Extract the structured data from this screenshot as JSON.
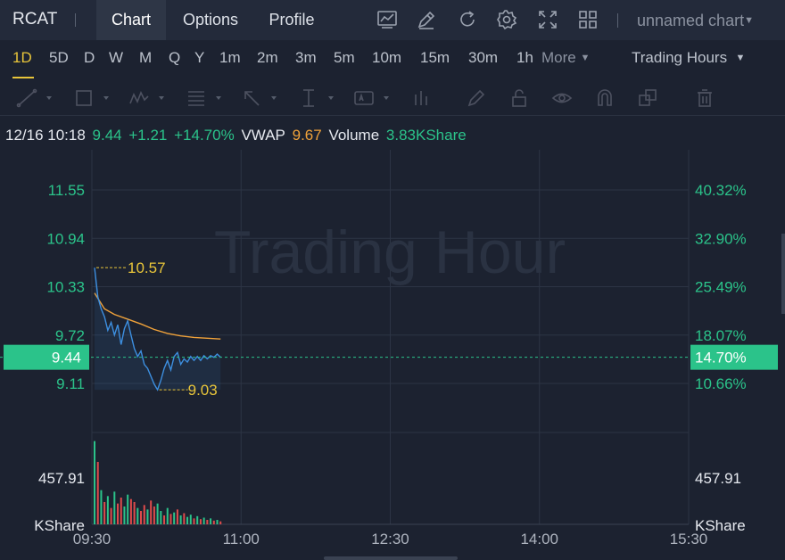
{
  "header": {
    "ticker": "RCAT",
    "tabs": [
      {
        "label": "Chart",
        "active": true
      },
      {
        "label": "Options",
        "active": false
      },
      {
        "label": "Profile",
        "active": false
      }
    ],
    "icons": [
      "indicators-icon",
      "draw-icon",
      "refresh-icon",
      "settings-icon",
      "fullscreen-icon",
      "layout-icon"
    ],
    "chart_name": "unnamed chart"
  },
  "timeframes": {
    "items": [
      "1D",
      "5D",
      "D",
      "W",
      "M",
      "Q",
      "Y",
      "1m",
      "2m",
      "3m",
      "5m",
      "10m",
      "15m",
      "30m",
      "1h"
    ],
    "active": "1D",
    "more_label": "More",
    "session_label": "Trading Hours"
  },
  "drawing_tools": [
    "trendline-icon",
    "rectangle-icon",
    "pattern-icon",
    "fibonacci-icon",
    "arrow-icon",
    "measure-icon",
    "text-icon",
    "bar-pattern-icon",
    "brush-icon",
    "lock-icon",
    "eye-icon",
    "magnet-icon",
    "layers-icon",
    "trash-icon"
  ],
  "quote": {
    "datetime": "12/16 10:18",
    "price": "9.44",
    "change": "+1.21",
    "change_pct": "+14.70%",
    "vwap_label": "VWAP",
    "vwap": "9.67",
    "volume_label": "Volume",
    "volume": "3.83KShare"
  },
  "colors": {
    "up": "#2bc38a",
    "down": "#e04b4b",
    "price_line": "#3d8fe0",
    "vwap_line": "#f0a23a",
    "accent": "#e8c53a"
  },
  "chart_data": {
    "type": "line",
    "watermark": "Trading Hour",
    "x_ticks": [
      "09:30",
      "11:00",
      "12:30",
      "14:00",
      "15:30"
    ],
    "y_ticks_price": [
      11.55,
      10.94,
      10.33,
      9.72,
      9.11
    ],
    "y_ticks_pct": [
      "40.32%",
      "32.90%",
      "25.49%",
      "18.07%",
      "10.66%"
    ],
    "current_price": "9.44",
    "current_pct": "14.70%",
    "high_label": "10.57",
    "low_label": "9.03",
    "volume_axis_value": "457.91",
    "volume_unit": "KShare",
    "price_series": [
      {
        "t": 0,
        "v": 10.57
      },
      {
        "t": 1,
        "v": 10.2
      },
      {
        "t": 2,
        "v": 10.05
      },
      {
        "t": 3,
        "v": 9.95
      },
      {
        "t": 4,
        "v": 9.78
      },
      {
        "t": 5,
        "v": 9.88
      },
      {
        "t": 6,
        "v": 9.72
      },
      {
        "t": 7,
        "v": 9.85
      },
      {
        "t": 8,
        "v": 9.6
      },
      {
        "t": 9,
        "v": 9.8
      },
      {
        "t": 10,
        "v": 9.9
      },
      {
        "t": 11,
        "v": 9.72
      },
      {
        "t": 12,
        "v": 9.55
      },
      {
        "t": 13,
        "v": 9.45
      },
      {
        "t": 14,
        "v": 9.52
      },
      {
        "t": 15,
        "v": 9.35
      },
      {
        "t": 16,
        "v": 9.3
      },
      {
        "t": 17,
        "v": 9.2
      },
      {
        "t": 18,
        "v": 9.1
      },
      {
        "t": 19,
        "v": 9.03
      },
      {
        "t": 20,
        "v": 9.15
      },
      {
        "t": 21,
        "v": 9.3
      },
      {
        "t": 22,
        "v": 9.4
      },
      {
        "t": 23,
        "v": 9.28
      },
      {
        "t": 24,
        "v": 9.45
      },
      {
        "t": 25,
        "v": 9.5
      },
      {
        "t": 26,
        "v": 9.35
      },
      {
        "t": 27,
        "v": 9.42
      },
      {
        "t": 28,
        "v": 9.38
      },
      {
        "t": 29,
        "v": 9.45
      },
      {
        "t": 30,
        "v": 9.4
      },
      {
        "t": 31,
        "v": 9.45
      },
      {
        "t": 32,
        "v": 9.4
      },
      {
        "t": 33,
        "v": 9.46
      },
      {
        "t": 34,
        "v": 9.42
      },
      {
        "t": 35,
        "v": 9.46
      },
      {
        "t": 36,
        "v": 9.44
      },
      {
        "t": 37,
        "v": 9.48
      },
      {
        "t": 38,
        "v": 9.44
      }
    ],
    "vwap_series": [
      {
        "t": 0,
        "v": 10.25
      },
      {
        "t": 3,
        "v": 10.05
      },
      {
        "t": 6,
        "v": 9.98
      },
      {
        "t": 10,
        "v": 9.92
      },
      {
        "t": 14,
        "v": 9.86
      },
      {
        "t": 18,
        "v": 9.79
      },
      {
        "t": 22,
        "v": 9.74
      },
      {
        "t": 26,
        "v": 9.71
      },
      {
        "t": 30,
        "v": 9.69
      },
      {
        "t": 34,
        "v": 9.68
      },
      {
        "t": 38,
        "v": 9.67
      }
    ],
    "volume_series": [
      {
        "t": 0,
        "v": 560,
        "up": true
      },
      {
        "t": 1,
        "v": 420,
        "up": false
      },
      {
        "t": 2,
        "v": 230,
        "up": true
      },
      {
        "t": 3,
        "v": 150,
        "up": false
      },
      {
        "t": 4,
        "v": 190,
        "up": true
      },
      {
        "t": 5,
        "v": 110,
        "up": false
      },
      {
        "t": 6,
        "v": 220,
        "up": true
      },
      {
        "t": 7,
        "v": 140,
        "up": false
      },
      {
        "t": 8,
        "v": 180,
        "up": false
      },
      {
        "t": 9,
        "v": 120,
        "up": true
      },
      {
        "t": 10,
        "v": 200,
        "up": true
      },
      {
        "t": 11,
        "v": 170,
        "up": false
      },
      {
        "t": 12,
        "v": 150,
        "up": false
      },
      {
        "t": 13,
        "v": 110,
        "up": true
      },
      {
        "t": 14,
        "v": 90,
        "up": false
      },
      {
        "t": 15,
        "v": 130,
        "up": false
      },
      {
        "t": 16,
        "v": 100,
        "up": true
      },
      {
        "t": 17,
        "v": 160,
        "up": false
      },
      {
        "t": 18,
        "v": 120,
        "up": false
      },
      {
        "t": 19,
        "v": 140,
        "up": true
      },
      {
        "t": 20,
        "v": 90,
        "up": true
      },
      {
        "t": 21,
        "v": 60,
        "up": false
      },
      {
        "t": 22,
        "v": 110,
        "up": true
      },
      {
        "t": 23,
        "v": 70,
        "up": false
      },
      {
        "t": 24,
        "v": 80,
        "up": true
      },
      {
        "t": 25,
        "v": 100,
        "up": false
      },
      {
        "t": 26,
        "v": 60,
        "up": true
      },
      {
        "t": 27,
        "v": 75,
        "up": false
      },
      {
        "t": 28,
        "v": 50,
        "up": true
      },
      {
        "t": 29,
        "v": 65,
        "up": true
      },
      {
        "t": 30,
        "v": 40,
        "up": false
      },
      {
        "t": 31,
        "v": 55,
        "up": true
      },
      {
        "t": 32,
        "v": 35,
        "up": false
      },
      {
        "t": 33,
        "v": 45,
        "up": true
      },
      {
        "t": 34,
        "v": 30,
        "up": false
      },
      {
        "t": 35,
        "v": 40,
        "up": true
      },
      {
        "t": 36,
        "v": 25,
        "up": false
      },
      {
        "t": 37,
        "v": 30,
        "up": true
      },
      {
        "t": 38,
        "v": 20,
        "up": false
      }
    ]
  }
}
